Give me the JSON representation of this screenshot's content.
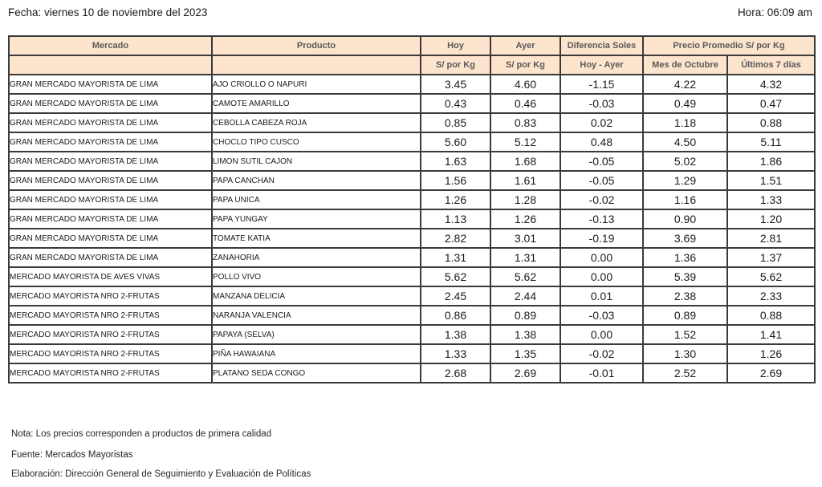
{
  "page": {
    "date_label": "Fecha: viernes 10 de noviembre del 2023",
    "time_label": "Hora: 06:09 am"
  },
  "colors": {
    "header_bg": "#FCE4CD",
    "header_text": "#595959",
    "grid_border": "#3A3A3A",
    "body_text": "#1B1B1B"
  },
  "table": {
    "header": {
      "mercado": "Mercado",
      "producto": "Producto",
      "hoy": "Hoy",
      "ayer": "Ayer",
      "diferencia": "Diferencia Soles",
      "precio_promedio": "Precio Promedio S/ por Kg",
      "hoy_sub": "S/ por Kg",
      "ayer_sub": "S/ por Kg",
      "diferencia_sub": "Hoy - Ayer",
      "promedio_mes": "Mes de Octubre",
      "promedio_7dias": "Últimos 7 días"
    },
    "rows": [
      {
        "mercado": "GRAN MERCADO MAYORISTA DE LIMA",
        "producto": "AJO CRIOLLO O NAPURI",
        "hoy": "3.45",
        "ayer": "4.60",
        "diferencia": "-1.15",
        "mes_octubre": "4.22",
        "ultimos_7dias": "4.32"
      },
      {
        "mercado": "GRAN MERCADO MAYORISTA DE LIMA",
        "producto": "CAMOTE AMARILLO",
        "hoy": "0.43",
        "ayer": "0.46",
        "diferencia": "-0.03",
        "mes_octubre": "0.49",
        "ultimos_7dias": "0.47"
      },
      {
        "mercado": "GRAN MERCADO MAYORISTA DE LIMA",
        "producto": "CEBOLLA CABEZA ROJA",
        "hoy": "0.85",
        "ayer": "0.83",
        "diferencia": "0.02",
        "mes_octubre": "1.18",
        "ultimos_7dias": "0.88"
      },
      {
        "mercado": "GRAN MERCADO MAYORISTA DE LIMA",
        "producto": "CHOCLO TIPO CUSCO",
        "hoy": "5.60",
        "ayer": "5.12",
        "diferencia": "0.48",
        "mes_octubre": "4.50",
        "ultimos_7dias": "5.11"
      },
      {
        "mercado": "GRAN MERCADO MAYORISTA DE LIMA",
        "producto": "LIMON SUTIL CAJON",
        "hoy": "1.63",
        "ayer": "1.68",
        "diferencia": "-0.05",
        "mes_octubre": "5.02",
        "ultimos_7dias": "1.86"
      },
      {
        "mercado": "GRAN MERCADO MAYORISTA DE LIMA",
        "producto": "PAPA CANCHAN",
        "hoy": "1.56",
        "ayer": "1.61",
        "diferencia": "-0.05",
        "mes_octubre": "1.29",
        "ultimos_7dias": "1.51"
      },
      {
        "mercado": "GRAN MERCADO MAYORISTA DE LIMA",
        "producto": "PAPA UNICA",
        "hoy": "1.26",
        "ayer": "1.28",
        "diferencia": "-0.02",
        "mes_octubre": "1.16",
        "ultimos_7dias": "1.33"
      },
      {
        "mercado": "GRAN MERCADO MAYORISTA DE LIMA",
        "producto": "PAPA YUNGAY",
        "hoy": "1.13",
        "ayer": "1.26",
        "diferencia": "-0.13",
        "mes_octubre": "0.90",
        "ultimos_7dias": "1.20"
      },
      {
        "mercado": "GRAN MERCADO MAYORISTA DE LIMA",
        "producto": "TOMATE KATIA",
        "hoy": "2.82",
        "ayer": "3.01",
        "diferencia": "-0.19",
        "mes_octubre": "3.69",
        "ultimos_7dias": "2.81"
      },
      {
        "mercado": "GRAN MERCADO MAYORISTA DE LIMA",
        "producto": "ZANAHORIA",
        "hoy": "1.31",
        "ayer": "1.31",
        "diferencia": "0.00",
        "mes_octubre": "1.36",
        "ultimos_7dias": "1.37"
      },
      {
        "mercado": "MERCADO MAYORISTA DE AVES VIVAS",
        "producto": "POLLO VIVO",
        "hoy": "5.62",
        "ayer": "5.62",
        "diferencia": "0.00",
        "mes_octubre": "5.39",
        "ultimos_7dias": "5.62"
      },
      {
        "mercado": "MERCADO MAYORISTA NRO 2-FRUTAS",
        "producto": "MANZANA DELICIA",
        "hoy": "2.45",
        "ayer": "2.44",
        "diferencia": "0.01",
        "mes_octubre": "2.38",
        "ultimos_7dias": "2.33"
      },
      {
        "mercado": "MERCADO MAYORISTA NRO 2-FRUTAS",
        "producto": "NARANJA VALENCIA",
        "hoy": "0.86",
        "ayer": "0.89",
        "diferencia": "-0.03",
        "mes_octubre": "0.89",
        "ultimos_7dias": "0.88"
      },
      {
        "mercado": "MERCADO MAYORISTA NRO 2-FRUTAS",
        "producto": "PAPAYA (SELVA)",
        "hoy": "1.38",
        "ayer": "1.38",
        "diferencia": "0.00",
        "mes_octubre": "1.52",
        "ultimos_7dias": "1.41"
      },
      {
        "mercado": "MERCADO MAYORISTA NRO 2-FRUTAS",
        "producto": "PIÑA HAWAIANA",
        "hoy": "1.33",
        "ayer": "1.35",
        "diferencia": "-0.02",
        "mes_octubre": "1.30",
        "ultimos_7dias": "1.26"
      },
      {
        "mercado": "MERCADO MAYORISTA NRO 2-FRUTAS",
        "producto": "PLATANO SEDA CONGO",
        "hoy": "2.68",
        "ayer": "2.69",
        "diferencia": "-0.01",
        "mes_octubre": "2.52",
        "ultimos_7dias": "2.69"
      }
    ]
  },
  "footer": {
    "nota": "Nota: Los precios corresponden a productos de primera calidad",
    "fuente": "Fuente: Mercados Mayoristas",
    "elaboracion": "Elaboración: Dirección General de Seguimiento y Evaluación de Políticas"
  }
}
